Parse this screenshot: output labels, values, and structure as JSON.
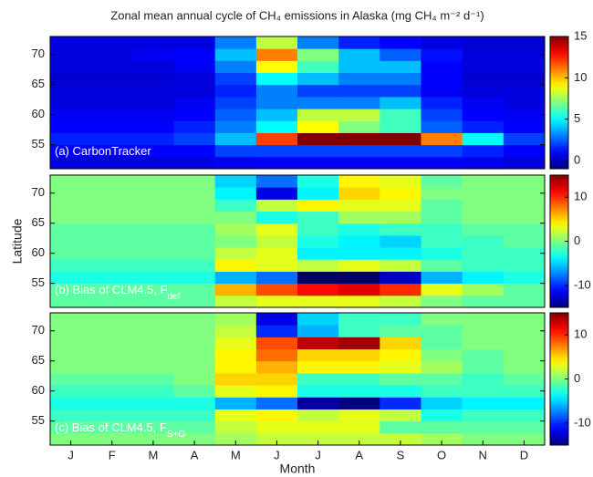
{
  "chart_data": [
    {
      "type": "heatmap",
      "title": "Zonal mean annual cycle of CH₄ emissions in Alaska (mg CH₄ m⁻² d⁻¹)",
      "annotation": {
        "text": "(a) CarbonTracker"
      },
      "y": [
        52,
        54,
        56,
        58,
        60,
        62,
        64,
        66,
        68,
        70,
        72
      ],
      "ylim": [
        51,
        73
      ],
      "yticks": [
        55,
        60,
        65,
        70
      ],
      "colormap": "jet",
      "zlim": [
        -1,
        15
      ],
      "zticks": [
        0,
        5,
        10,
        15
      ],
      "values": [
        [
          0.5,
          0.5,
          0.5,
          0.5,
          0.8,
          1,
          1,
          1,
          1,
          1,
          0.8,
          0.5
        ],
        [
          1,
          1,
          1,
          1,
          2,
          2,
          2,
          2,
          2,
          2,
          1.5,
          1
        ],
        [
          1.5,
          1.5,
          1.5,
          2,
          4,
          12,
          15,
          15,
          15,
          11,
          5,
          2
        ],
        [
          1,
          1,
          1,
          1.5,
          3,
          5,
          9,
          7,
          6,
          2.5,
          1.5,
          1
        ],
        [
          0.8,
          0.8,
          0.8,
          1,
          2.5,
          4,
          8,
          8,
          6,
          2,
          1,
          0.8
        ],
        [
          0.5,
          0.5,
          0.5,
          0.8,
          2,
          3,
          3,
          3,
          4,
          1.5,
          0.8,
          0.5
        ],
        [
          0.5,
          0.5,
          0.5,
          0.5,
          1.5,
          3,
          2,
          2,
          2,
          0.8,
          0.5,
          0.5
        ],
        [
          0.3,
          0.3,
          0.3,
          0.5,
          2,
          5,
          4,
          3,
          3,
          1,
          0.3,
          0.3
        ],
        [
          0.5,
          0.5,
          0.5,
          0.8,
          3,
          9,
          6,
          4,
          4,
          1,
          0.5,
          0.5
        ],
        [
          0.5,
          0.5,
          0.8,
          1,
          4,
          11,
          7,
          4,
          2.5,
          1.2,
          0.5,
          0.5
        ],
        [
          0.5,
          0.5,
          0.5,
          0.5,
          3,
          8,
          3,
          1.5,
          1,
          0.5,
          0.3,
          0.3
        ]
      ]
    },
    {
      "type": "heatmap",
      "y_label": "Latitude",
      "annotation": {
        "text": "(b) Bias of CLM4.5, F",
        "sub": "def"
      },
      "y": [
        52,
        54,
        56,
        58,
        60,
        62,
        64,
        66,
        68,
        70,
        72
      ],
      "ylim": [
        51,
        73
      ],
      "yticks": [
        55,
        60,
        65,
        70
      ],
      "colormap": "jet",
      "zlim": [
        -15,
        15
      ],
      "zticks": [
        -10,
        0,
        10
      ],
      "values": [
        [
          -1,
          -1,
          -1,
          -1,
          2,
          3,
          3,
          3,
          2,
          0,
          -1,
          -1
        ],
        [
          -1,
          -1,
          -1,
          -1,
          6,
          9,
          11,
          12,
          10,
          3,
          1,
          -1
        ],
        [
          -3,
          -3,
          -3,
          -3,
          -6,
          -8,
          -16,
          -16,
          -13,
          -6,
          -4,
          -3
        ],
        [
          -2,
          -2,
          -2,
          -2,
          4,
          3,
          2,
          3,
          2,
          -1,
          -2,
          -2
        ],
        [
          -1,
          -1,
          -1,
          -1,
          2,
          3,
          -4,
          -4,
          -4,
          -3,
          -2,
          -2
        ],
        [
          -1,
          -1,
          -1,
          -1,
          0,
          2,
          -3,
          -4,
          -5,
          -2,
          -2,
          -1
        ],
        [
          -1,
          -1,
          -1,
          -1,
          1,
          3,
          -2,
          -3,
          -2,
          -2,
          -1,
          -1
        ],
        [
          0,
          0,
          0,
          0,
          0,
          -3,
          -2,
          1,
          1,
          -1,
          0,
          0
        ],
        [
          0,
          0,
          0,
          0,
          -2,
          2,
          4,
          3,
          3,
          -1,
          0,
          0
        ],
        [
          0,
          0,
          0,
          0,
          -4,
          -12,
          -4,
          5,
          4,
          0,
          0,
          0
        ],
        [
          0,
          0,
          0,
          0,
          -5,
          -8,
          -3,
          4,
          3,
          -1,
          0,
          0
        ]
      ]
    },
    {
      "type": "heatmap",
      "x_label": "Month",
      "annotation": {
        "text": "(c) Bias of CLM4.5, F",
        "sub": "S+G"
      },
      "categories": [
        "J",
        "F",
        "M",
        "A",
        "M",
        "J",
        "J",
        "A",
        "S",
        "O",
        "N",
        "D"
      ],
      "y": [
        52,
        54,
        56,
        58,
        60,
        62,
        64,
        66,
        68,
        70,
        72
      ],
      "ylim": [
        51,
        73
      ],
      "yticks": [
        55,
        60,
        65,
        70
      ],
      "colormap": "jet",
      "zlim": [
        -15,
        15
      ],
      "zticks": [
        -10,
        0,
        10
      ],
      "values": [
        [
          0,
          0,
          0,
          0,
          1,
          2,
          2,
          2,
          2,
          1,
          0,
          0
        ],
        [
          -1,
          -1,
          -1,
          -1,
          2,
          3,
          3,
          3,
          -1,
          -1,
          -1,
          -1
        ],
        [
          -2,
          -2,
          -2,
          -2,
          3,
          4,
          2,
          3,
          2,
          -3,
          -2,
          -2
        ],
        [
          -3,
          -3,
          -3,
          -3,
          -6,
          -8,
          -14,
          -15,
          -10,
          -5,
          -4,
          -4
        ],
        [
          -2,
          -2,
          -2,
          -1,
          3,
          4,
          -3,
          -3,
          -3,
          -2,
          -2,
          -2
        ],
        [
          -1,
          -1,
          -1,
          0,
          5,
          5,
          -2,
          -2,
          -1,
          -1,
          -2,
          -1
        ],
        [
          0,
          0,
          0,
          0,
          4,
          6,
          4,
          4,
          3,
          1,
          -1,
          0
        ],
        [
          0,
          0,
          0,
          0,
          4,
          8,
          5,
          5,
          4,
          0,
          -1,
          0
        ],
        [
          0,
          0,
          0,
          0,
          3,
          9,
          13,
          14,
          5,
          -1,
          0,
          0
        ],
        [
          0,
          0,
          0,
          0,
          2,
          -10,
          -6,
          -2,
          -1,
          -1,
          0,
          0
        ],
        [
          0,
          0,
          0,
          0,
          1,
          -12,
          -5,
          -2,
          -2,
          0,
          0,
          0
        ]
      ]
    }
  ]
}
